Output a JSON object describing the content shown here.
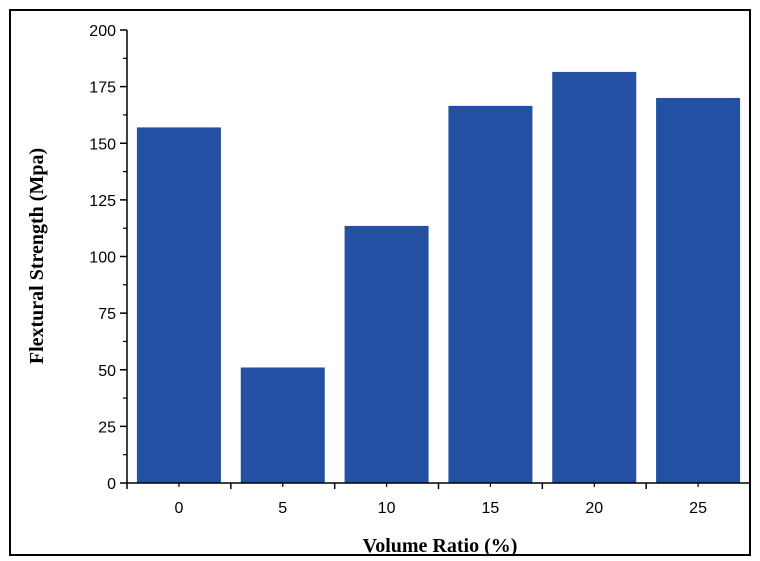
{
  "chart_data": {
    "type": "bar",
    "title": "",
    "xlabel": "Volume Ratio (%)",
    "ylabel": "Flextural Strength (Mpa)",
    "categories": [
      "0",
      "5",
      "10",
      "15",
      "20",
      "25"
    ],
    "values": [
      157,
      51,
      113.5,
      166.5,
      181.5,
      170
    ],
    "ylim": [
      0,
      200
    ],
    "yticks": [
      "0",
      "25",
      "50",
      "75",
      "100",
      "125",
      "150",
      "175",
      "200"
    ],
    "grid": false,
    "legend": "none",
    "bar_color": "#2450A4",
    "axis_color": "#000000"
  }
}
